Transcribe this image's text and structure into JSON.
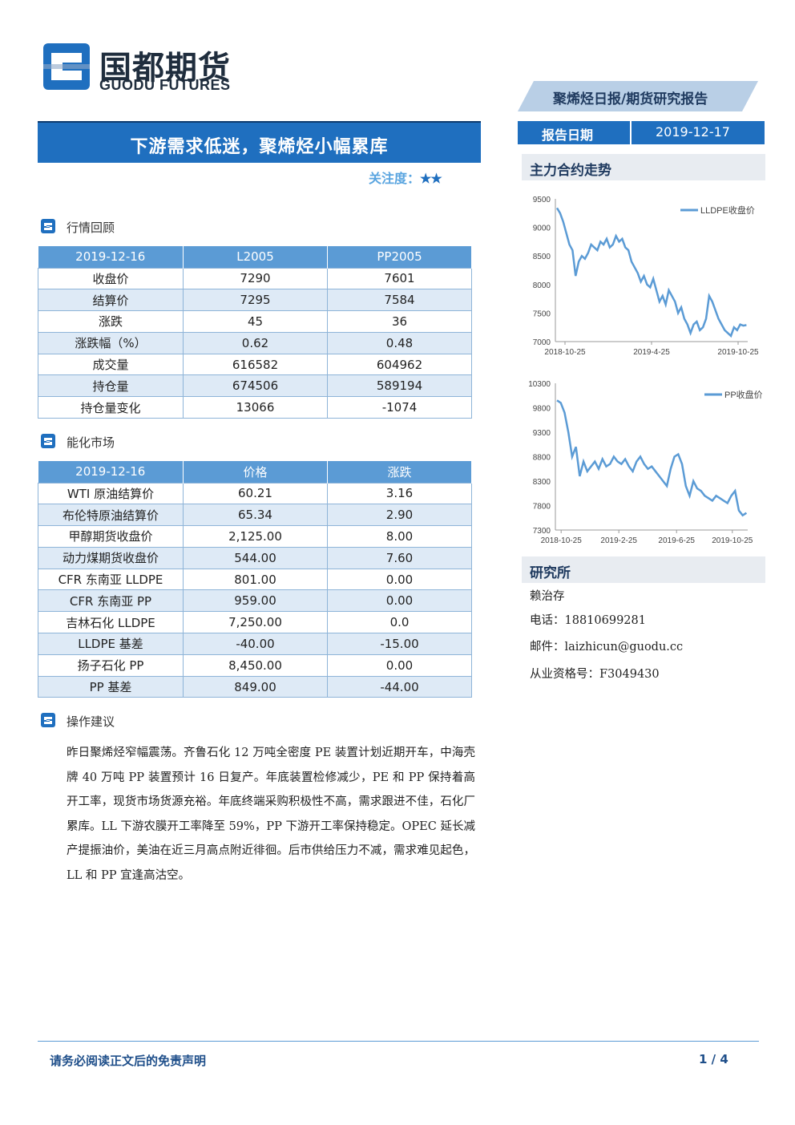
{
  "logo": {
    "cn": "国都期货",
    "en": "GUODU FUTURES"
  },
  "report_banner": "聚烯烃日报/期货研究报告",
  "title": "下游需求低迷，聚烯烃小幅累库",
  "attention": {
    "label": "关注度：",
    "stars": "★★"
  },
  "sections": {
    "market_review": "行情回顾",
    "energy_market": "能化市场",
    "advice": "操作建议"
  },
  "market_table": {
    "headers": [
      "2019-12-16",
      "L2005",
      "PP2005"
    ],
    "rows": [
      [
        "收盘价",
        "7290",
        "7601"
      ],
      [
        "结算价",
        "7295",
        "7584"
      ],
      [
        "涨跌",
        "45",
        "36"
      ],
      [
        "涨跌幅（%）",
        "0.62",
        "0.48"
      ],
      [
        "成交量",
        "616582",
        "604962"
      ],
      [
        "持仓量",
        "674506",
        "589194"
      ],
      [
        "持仓量变化",
        "13066",
        "-1074"
      ]
    ]
  },
  "energy_table": {
    "headers": [
      "2019-12-16",
      "价格",
      "涨跌"
    ],
    "rows": [
      [
        "WTI 原油结算价",
        "60.21",
        "3.16"
      ],
      [
        "布伦特原油结算价",
        "65.34",
        "2.90"
      ],
      [
        "甲醇期货收盘价",
        "2,125.00",
        "8.00"
      ],
      [
        "动力煤期货收盘价",
        "544.00",
        "7.60"
      ],
      [
        "CFR 东南亚 LLDPE",
        "801.00",
        "0.00"
      ],
      [
        "CFR 东南亚 PP",
        "959.00",
        "0.00"
      ],
      [
        "吉林石化 LLDPE",
        "7,250.00",
        "0.0"
      ],
      [
        "LLDPE 基差",
        "-40.00",
        "-15.00"
      ],
      [
        "扬子石化 PP",
        "8,450.00",
        "0.00"
      ],
      [
        "PP 基差",
        "849.00",
        "-44.00"
      ]
    ]
  },
  "advice_text": "昨日聚烯烃窄幅震荡。齐鲁石化 12 万吨全密度 PE 装置计划近期开车，中海壳牌 40 万吨 PP 装置预计 16 日复产。年底装置检修减少，PE 和 PP 保持着高开工率，现货市场货源充裕。年底终端采购积极性不高，需求跟进不佳，石化厂累库。LL 下游农膜开工率降至 59%，PP 下游开工率保持稳定。OPEC 延长减产提振油价，美油在近三月高点附近徘徊。后市供给压力不减，需求难见起色，LL 和 PP 宜逢高沽空。",
  "report_date": {
    "label": "报告日期",
    "value": "2019-12-17"
  },
  "trend_header": "主力合约走势",
  "chart_data": [
    {
      "type": "line",
      "series": [
        {
          "name": "LLDPE收盘价",
          "values": [
            9340,
            9250,
            9100,
            8900,
            8700,
            8600,
            8150,
            8400,
            8500,
            8450,
            8550,
            8700,
            8650,
            8600,
            8750,
            8700,
            8800,
            8650,
            8700,
            8850,
            8750,
            8800,
            8650,
            8600,
            8400,
            8300,
            8200,
            8050,
            8150,
            8000,
            7950,
            8100,
            7900,
            7700,
            7800,
            7650,
            7900,
            7800,
            7700,
            7500,
            7600,
            7400,
            7300,
            7150,
            7300,
            7350,
            7200,
            7250,
            7400,
            7800,
            7700,
            7550,
            7400,
            7300,
            7200,
            7150,
            7100,
            7250,
            7200,
            7300,
            7280,
            7290
          ]
        }
      ],
      "x_ticks": [
        "2018-10-25",
        "2019-4-25",
        "2019-10-25"
      ],
      "y_ticks": [
        7000,
        7500,
        8000,
        8500,
        9000,
        9500
      ],
      "ylim": [
        7000,
        9500
      ],
      "legend": "top-right"
    },
    {
      "type": "line",
      "series": [
        {
          "name": "PP收盘价",
          "values": [
            9950,
            9900,
            9700,
            9300,
            8800,
            9000,
            8400,
            8700,
            8500,
            8600,
            8700,
            8550,
            8750,
            8600,
            8650,
            8800,
            8700,
            8650,
            8750,
            8600,
            8500,
            8700,
            8800,
            8650,
            8550,
            8600,
            8500,
            8400,
            8300,
            8200,
            8550,
            8800,
            8850,
            8650,
            8200,
            8000,
            8300,
            8150,
            8100,
            8000,
            7950,
            7900,
            8000,
            7950,
            7900,
            7850,
            8000,
            8100,
            7700,
            7600,
            7650
          ]
        }
      ],
      "x_ticks": [
        "2018-10-25",
        "2019-2-25",
        "2019-6-25",
        "2019-10-25"
      ],
      "y_ticks": [
        7300,
        7800,
        8300,
        8800,
        9300,
        9800,
        10300
      ],
      "ylim": [
        7300,
        10300
      ],
      "legend": "top-right"
    }
  ],
  "research": {
    "header": "研究所",
    "name": "赖治存",
    "phone": "电话：18810699281",
    "email": "邮件：laizhicun@guodu.cc",
    "license": "从业资格号：F3049430"
  },
  "footer": {
    "disclaimer": "请务必阅读正文后的免责声明",
    "page": "1 / 4"
  },
  "colors": {
    "brand_blue": "#1f6fbf",
    "header_blue": "#5b9bd5",
    "stripe": "#deeaf6",
    "line": "#5b9bd5"
  }
}
